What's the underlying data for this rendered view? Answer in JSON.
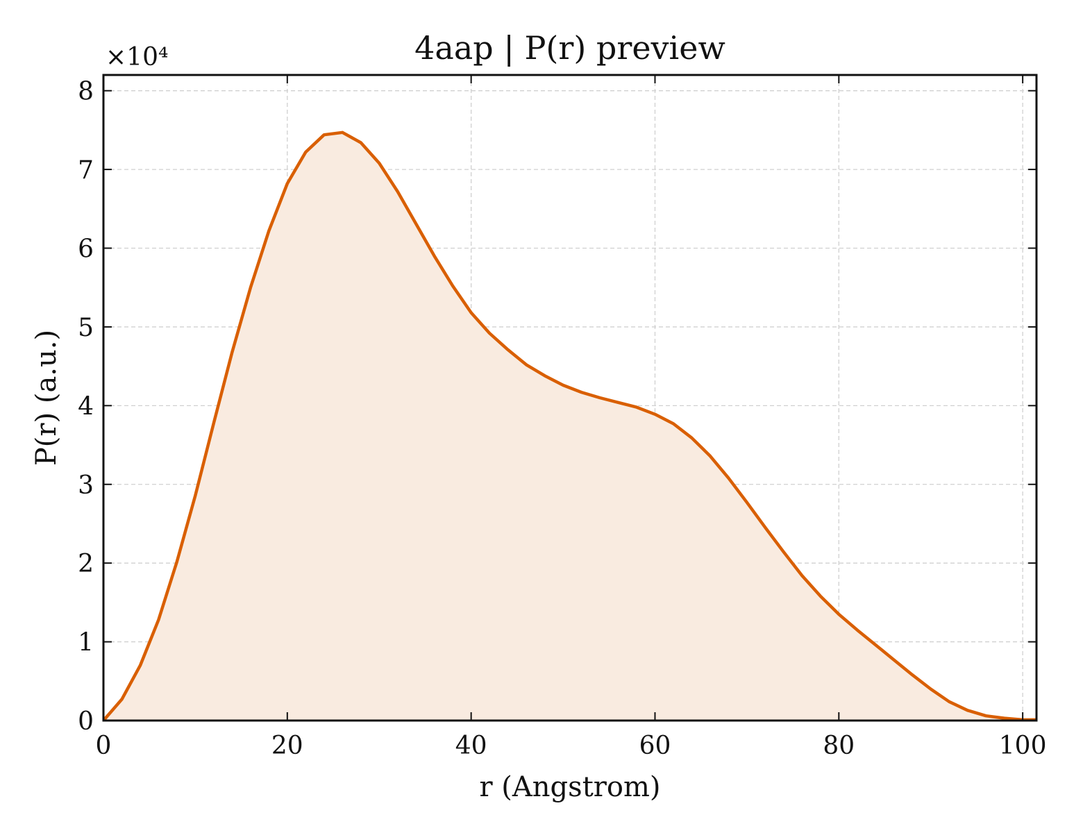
{
  "chart_data": {
    "type": "area",
    "title": "4aap | P(r) preview",
    "xlabel": "r (Angstrom)",
    "ylabel": "P(r) (a.u.)",
    "y_multiplier_label": "×10⁴",
    "xlim": [
      0,
      101.5
    ],
    "ylim": [
      0,
      8.2
    ],
    "xticks": [
      0,
      20,
      40,
      60,
      80,
      100
    ],
    "yticks": [
      0,
      1,
      2,
      3,
      4,
      5,
      6,
      7,
      8
    ],
    "xtick_labels": [
      "0",
      "20",
      "40",
      "60",
      "80",
      "100"
    ],
    "ytick_labels": [
      "0",
      "1",
      "2",
      "3",
      "4",
      "5",
      "6",
      "7",
      "8"
    ],
    "grid": true,
    "line_color": "#d95f02",
    "fill_color": "#f9ebe0",
    "series": [
      {
        "x": [
          0,
          2,
          4,
          6,
          8,
          10,
          12,
          14,
          16,
          18,
          20,
          22,
          24,
          26,
          28,
          30,
          32,
          34,
          36,
          38,
          40,
          42,
          44,
          46,
          48,
          50,
          52,
          54,
          56,
          58,
          60,
          62,
          64,
          66,
          68,
          70,
          72,
          74,
          76,
          78,
          80,
          82,
          84,
          86,
          88,
          90,
          92,
          94,
          96,
          98,
          100,
          101.5
        ],
        "y": [
          0,
          0.27,
          0.7,
          1.28,
          2.02,
          2.86,
          3.78,
          4.68,
          5.5,
          6.22,
          6.82,
          7.22,
          7.44,
          7.47,
          7.34,
          7.08,
          6.72,
          6.31,
          5.9,
          5.52,
          5.18,
          4.92,
          4.71,
          4.52,
          4.38,
          4.26,
          4.17,
          4.1,
          4.04,
          3.98,
          3.89,
          3.77,
          3.59,
          3.36,
          3.08,
          2.77,
          2.45,
          2.14,
          1.84,
          1.58,
          1.35,
          1.15,
          0.96,
          0.77,
          0.58,
          0.4,
          0.24,
          0.13,
          0.06,
          0.03,
          0.01,
          0.01
        ]
      }
    ]
  }
}
